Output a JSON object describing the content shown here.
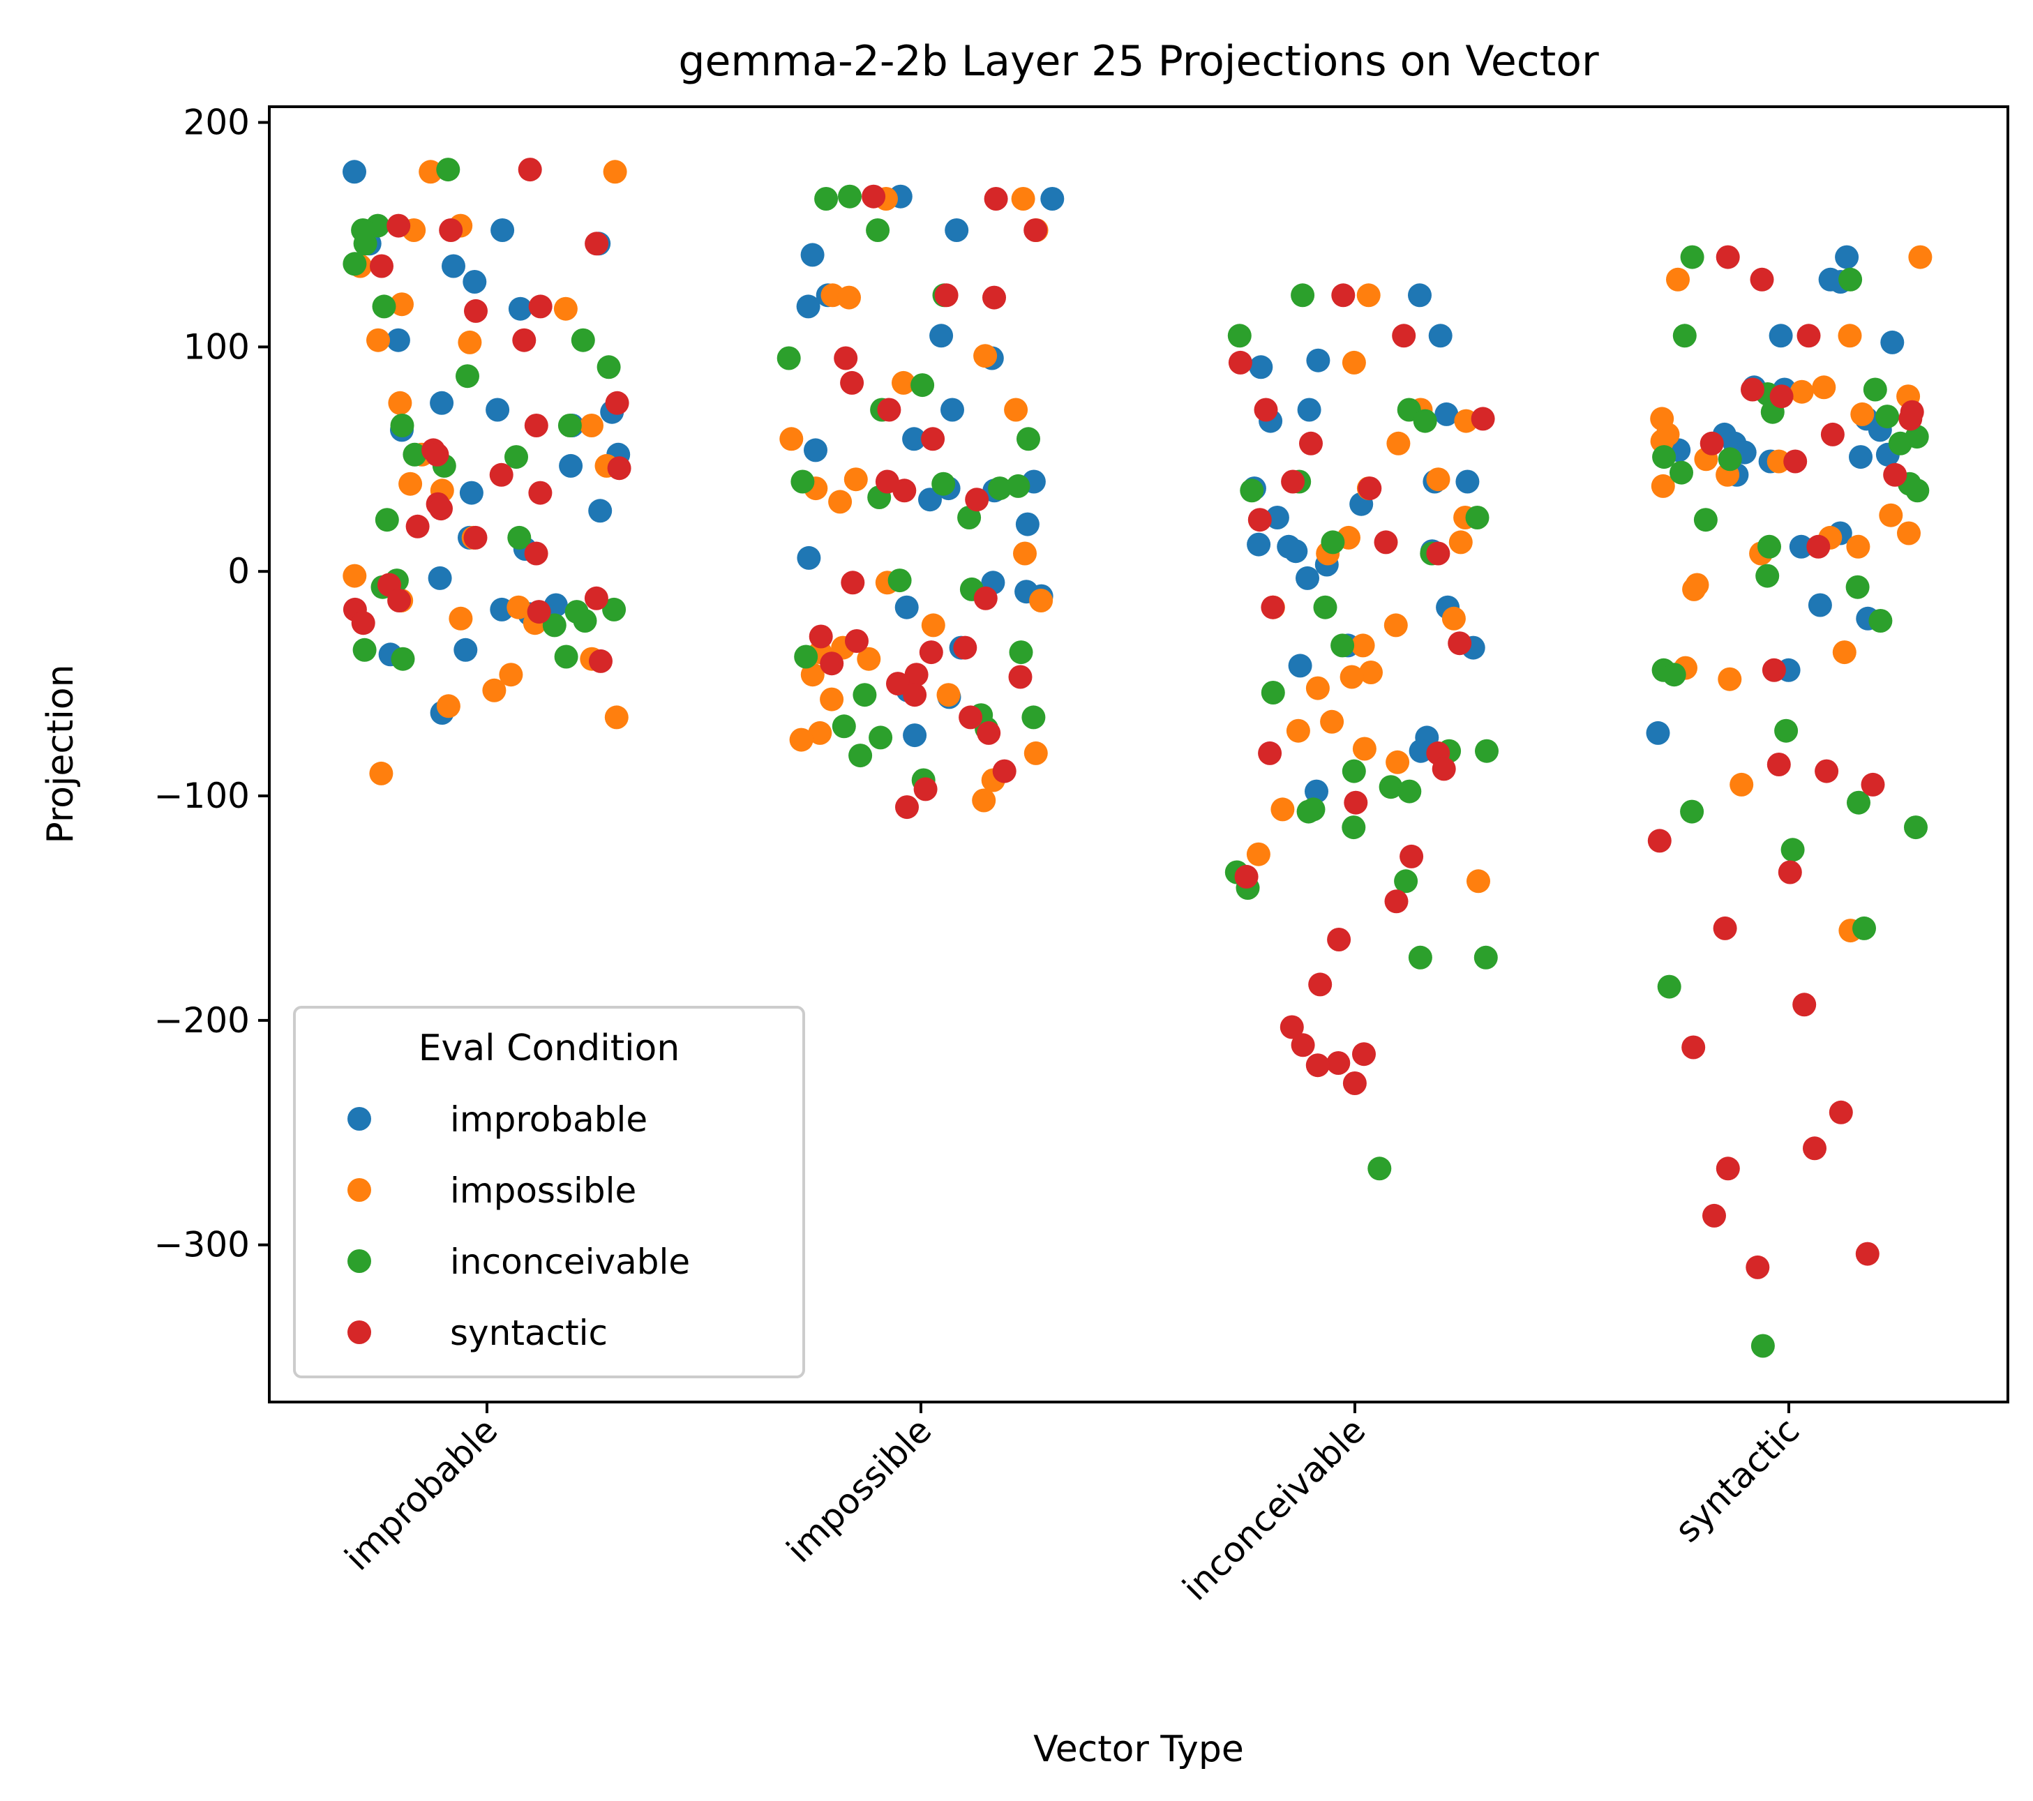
{
  "chart_data": {
    "type": "scatter",
    "title": "gemma-2-2b Layer 25 Projections on Vector",
    "xlabel": "Vector Type",
    "ylabel": "Projection",
    "categories": [
      "improbable",
      "impossible",
      "inconceivable",
      "syntactic"
    ],
    "ylim": [
      -370,
      207
    ],
    "yticks": [
      200,
      100,
      0,
      -100,
      -200,
      -300
    ],
    "ytick_labels": [
      "200",
      "100",
      "0",
      "−100",
      "−200",
      "−300"
    ],
    "jitter": "strip",
    "legend": {
      "title": "Eval Condition",
      "placement": "lower-left",
      "entries": [
        "improbable",
        "impossible",
        "inconceivable",
        "syntactic"
      ]
    },
    "colors": {
      "improbable": "#1f77b4",
      "impossible": "#ff7f0e",
      "inconceivable": "#2ca02c",
      "syntactic": "#d62728"
    },
    "series": [
      {
        "name": "improbable",
        "points": [
          {
            "x": "improbable",
            "y": [
              178,
              146,
              146,
              152,
              136,
              129,
              117,
              103,
              75,
              72,
              71,
              65,
              63,
              52,
              47,
              35,
              27,
              15,
              10,
              -3,
              -15,
              -17,
              -19,
              -35,
              -37,
              -63
            ]
          },
          {
            "x": "impossible",
            "y": [
              167,
              166,
              152,
              141,
              123,
              118,
              105,
              95,
              72,
              59,
              54,
              40,
              37,
              36,
              32,
              21,
              6,
              -5,
              -9,
              -11,
              -16,
              -34,
              -53,
              -56,
              -73
            ]
          },
          {
            "x": "inconceivable",
            "y": [
              123,
              105,
              94,
              91,
              72,
              70,
              67,
              40,
              40,
              37,
              30,
              24,
              12,
              11,
              9,
              9,
              3,
              -3,
              -16,
              -33,
              -34,
              -42,
              -74,
              -80,
              -98
            ]
          },
          {
            "x": "syntactic",
            "y": [
              140,
              130,
              129,
              105,
              102,
              82,
              81,
              68,
              63,
              61,
              57,
              54,
              53,
              52,
              51,
              49,
              43,
              17,
              11,
              -15,
              -21,
              -44,
              -72
            ]
          }
        ]
      },
      {
        "name": "impossible",
        "points": [
          {
            "x": "improbable",
            "y": [
              178,
              178,
              154,
              152,
              136,
              119,
              117,
              103,
              102,
              75,
              65,
              52,
              47,
              39,
              36,
              15,
              -2,
              -13,
              -16,
              -21,
              -23,
              -39,
              -53,
              -60,
              -65,
              -90,
              -46
            ]
          },
          {
            "x": "impossible",
            "y": [
              166,
              166,
              152,
              123,
              122,
              96,
              84,
              72,
              59,
              41,
              37,
              31,
              8,
              -5,
              -13,
              -24,
              -34,
              -36,
              -39,
              -46,
              -55,
              -57,
              -72,
              -75,
              -81,
              -93,
              -102
            ]
          },
          {
            "x": "inconceivable",
            "y": [
              123,
              93,
              72,
              67,
              57,
              41,
              37,
              24,
              15,
              13,
              8,
              -16,
              -21,
              -24,
              -33,
              -45,
              -47,
              -52,
              -67,
              -71,
              -79,
              -85,
              -106,
              -126,
              -138
            ]
          },
          {
            "x": "syntactic",
            "y": [
              140,
              130,
              105,
              82,
              80,
              78,
              70,
              68,
              61,
              58,
              50,
              49,
              43,
              38,
              25,
              17,
              15,
              11,
              8,
              -6,
              -8,
              -36,
              -43,
              -48,
              -95,
              -160
            ]
          }
        ]
      },
      {
        "name": "inconceivable",
        "points": [
          {
            "x": "improbable",
            "y": [
              179,
              154,
              152,
              146,
              137,
              118,
              103,
              91,
              87,
              65,
              65,
              52,
              51,
              47,
              23,
              15,
              -4,
              -7,
              -17,
              -18,
              -22,
              -24,
              -35,
              -38,
              -39
            ]
          },
          {
            "x": "impossible",
            "y": [
              167,
              166,
              152,
              123,
              95,
              83,
              72,
              59,
              40,
              39,
              38,
              37,
              33,
              24,
              -4,
              -8,
              -36,
              -38,
              -55,
              -64,
              -65,
              -69,
              -70,
              -74,
              -82,
              -93
            ]
          },
          {
            "x": "inconceivable",
            "y": [
              123,
              105,
              72,
              67,
              40,
              36,
              24,
              13,
              8,
              -16,
              -33,
              -54,
              -80,
              -80,
              -89,
              -96,
              -98,
              -106,
              -107,
              -114,
              -134,
              -138,
              -141,
              -172,
              -172,
              -266
            ]
          },
          {
            "x": "syntactic",
            "y": [
              140,
              130,
              105,
              81,
              79,
              71,
              69,
              60,
              57,
              51,
              50,
              44,
              39,
              36,
              23,
              11,
              -2,
              -7,
              -22,
              -44,
              -46,
              -71,
              -103,
              -107,
              -114,
              -124,
              -159,
              -185,
              -345
            ]
          }
        ]
      },
      {
        "name": "syntactic",
        "points": [
          {
            "x": "improbable",
            "y": [
              179,
              154,
              152,
              146,
              136,
              118,
              116,
              103,
              75,
              65,
              54,
              52,
              46,
              43,
              35,
              30,
              28,
              20,
              15,
              8,
              -6,
              -12,
              -13,
              -17,
              -18,
              -23,
              -40
            ]
          },
          {
            "x": "impossible",
            "y": [
              167,
              166,
              152,
              123,
              122,
              95,
              84,
              72,
              59,
              40,
              36,
              32,
              -5,
              -12,
              -29,
              -31,
              -34,
              -36,
              -41,
              -46,
              -47,
              -50,
              -55,
              -65,
              -72,
              -89,
              -97,
              -105
            ]
          },
          {
            "x": "inconceivable",
            "y": [
              123,
              105,
              93,
              72,
              68,
              57,
              40,
              37,
              23,
              13,
              8,
              -16,
              -32,
              -81,
              -81,
              -88,
              -103,
              -127,
              -136,
              -147,
              -164,
              -184,
              -203,
              -211,
              -215,
              -219,
              -220,
              -228
            ]
          },
          {
            "x": "syntactic",
            "y": [
              140,
              130,
              105,
              81,
              78,
              71,
              68,
              61,
              57,
              49,
              43,
              11,
              -44,
              -86,
              -89,
              -95,
              -120,
              -134,
              -159,
              -193,
              -212,
              -241,
              -257,
              -266,
              -287,
              -304,
              -310
            ]
          }
        ]
      }
    ]
  }
}
